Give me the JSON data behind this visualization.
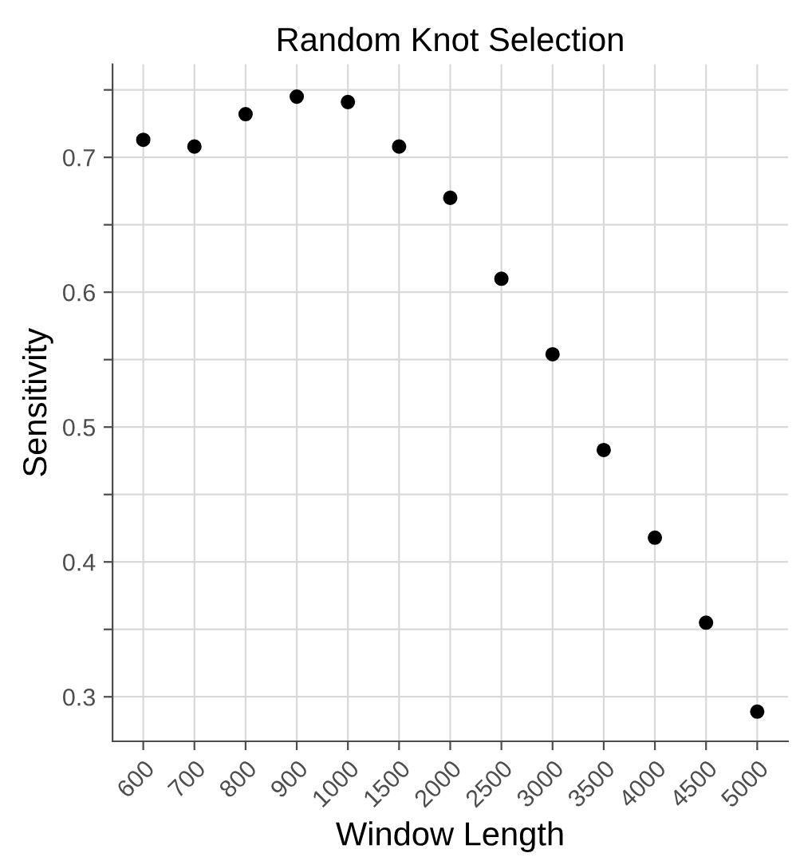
{
  "chart_data": {
    "type": "scatter",
    "title": "Random Knot Selection",
    "xlabel": "Window Length",
    "ylabel": "Sensitivity",
    "categories": [
      "600",
      "700",
      "800",
      "900",
      "1000",
      "1500",
      "2000",
      "2500",
      "3000",
      "3500",
      "4000",
      "4500",
      "5000"
    ],
    "series": [
      {
        "color": "#000000",
        "values": [
          0.713,
          0.708,
          0.732,
          0.745,
          0.741,
          0.708,
          0.67,
          0.61,
          0.554,
          0.483,
          0.418,
          0.355,
          0.289
        ]
      }
    ],
    "ylim": [
      0.267,
      0.769
    ],
    "yticks": [
      0.3,
      {
        "value": 0.35,
        "label": null
      },
      0.4,
      {
        "value": 0.45,
        "label": null
      },
      0.5,
      {
        "value": 0.55,
        "label": null
      },
      0.6,
      {
        "value": 0.65,
        "label": null
      },
      0.7,
      {
        "value": 0.75,
        "label": null
      }
    ],
    "grid": true,
    "marker": "circle"
  }
}
